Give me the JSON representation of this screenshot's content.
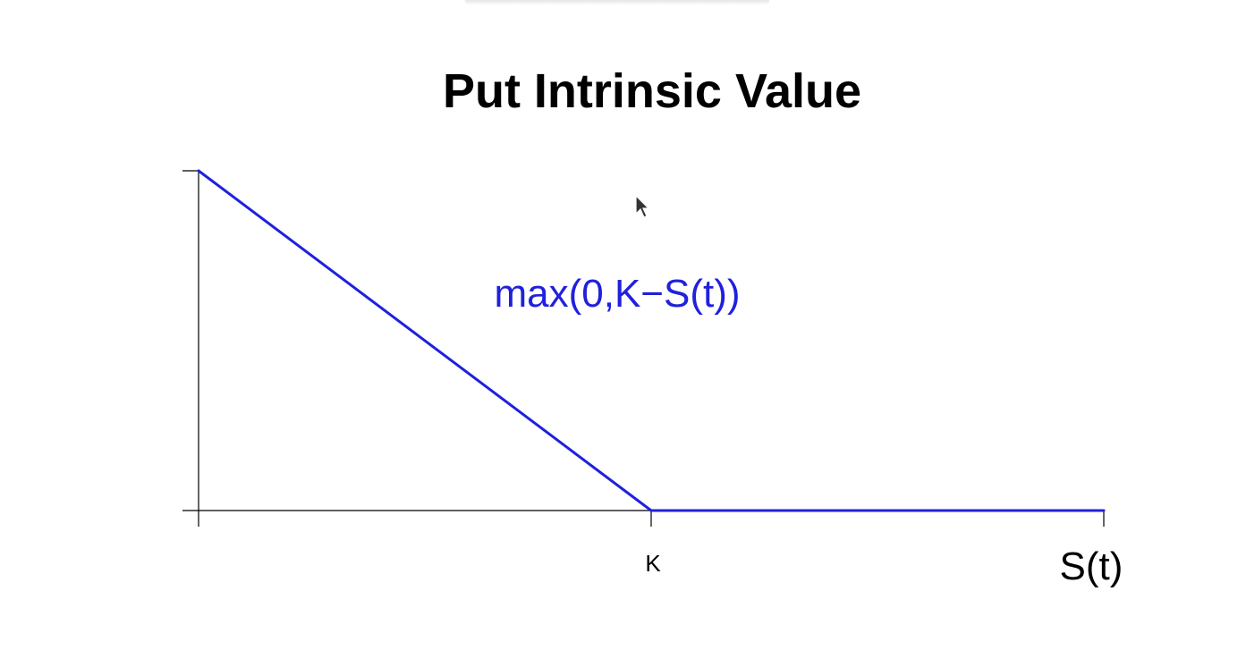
{
  "chart_data": {
    "type": "line",
    "title": "Put Intrinsic Value",
    "xlabel": "S(t)",
    "ylabel": "",
    "x_tick_labels": [
      {
        "x": 0,
        "label": ""
      },
      {
        "x": 1,
        "label": "K"
      },
      {
        "x": 2,
        "label": ""
      }
    ],
    "y_tick_values": [
      0,
      1
    ],
    "xlim": [
      0,
      2
    ],
    "ylim": [
      0,
      1
    ],
    "grid": false,
    "series": [
      {
        "color": "#2020dd",
        "points": [
          {
            "x": 0,
            "y": 1
          },
          {
            "x": 1,
            "y": 0
          },
          {
            "x": 2,
            "y": 0
          }
        ]
      }
    ],
    "annotations": [
      {
        "text": "max(0,K−S(t))",
        "color": "#2020dd"
      }
    ]
  },
  "icons": {
    "cursor": "mouse-pointer-icon"
  }
}
